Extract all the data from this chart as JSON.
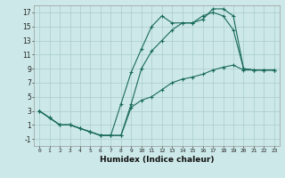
{
  "title": "",
  "xlabel": "Humidex (Indice chaleur)",
  "background_color": "#cce8e8",
  "grid_color": "#aacccc",
  "line_color": "#1a6b5a",
  "xlim": [
    -0.5,
    23.5
  ],
  "ylim": [
    -2,
    18
  ],
  "xticks": [
    0,
    1,
    2,
    3,
    4,
    5,
    6,
    7,
    8,
    9,
    10,
    11,
    12,
    13,
    14,
    15,
    16,
    17,
    18,
    19,
    20,
    21,
    22,
    23
  ],
  "yticks": [
    -1,
    1,
    3,
    5,
    7,
    9,
    11,
    13,
    15,
    17
  ],
  "line1_x": [
    0,
    1,
    2,
    3,
    4,
    5,
    6,
    7,
    8,
    9,
    10,
    11,
    12,
    13,
    14,
    15,
    16,
    17,
    18,
    19,
    20,
    21,
    22,
    23
  ],
  "line1_y": [
    3,
    2,
    1,
    1,
    0.5,
    0.0,
    -0.5,
    -0.5,
    -0.5,
    4.0,
    9.0,
    11.5,
    13.0,
    14.5,
    15.5,
    15.5,
    16.0,
    17.5,
    17.5,
    16.5,
    9.0,
    8.8,
    8.8,
    8.8
  ],
  "line2_x": [
    0,
    1,
    2,
    3,
    4,
    5,
    6,
    7,
    8,
    9,
    10,
    11,
    12,
    13,
    14,
    15,
    16,
    17,
    18,
    19,
    20,
    21,
    22,
    23
  ],
  "line2_y": [
    3,
    2,
    1,
    1,
    0.5,
    0.0,
    -0.5,
    -0.5,
    -0.5,
    3.5,
    4.5,
    5.0,
    6.0,
    7.0,
    7.5,
    7.8,
    8.2,
    8.8,
    9.2,
    9.5,
    8.8,
    8.8,
    8.8,
    8.8
  ],
  "line3_x": [
    0,
    1,
    2,
    3,
    4,
    5,
    6,
    7,
    8,
    9,
    10,
    11,
    12,
    13,
    14,
    15,
    16,
    17,
    18,
    19,
    20,
    21,
    22,
    23
  ],
  "line3_y": [
    3,
    2,
    1,
    1,
    0.5,
    0.0,
    -0.5,
    -0.5,
    4.0,
    8.5,
    11.8,
    15.0,
    16.5,
    15.5,
    15.5,
    15.5,
    16.5,
    17.0,
    16.5,
    14.5,
    9.0,
    8.8,
    8.8,
    8.8
  ]
}
